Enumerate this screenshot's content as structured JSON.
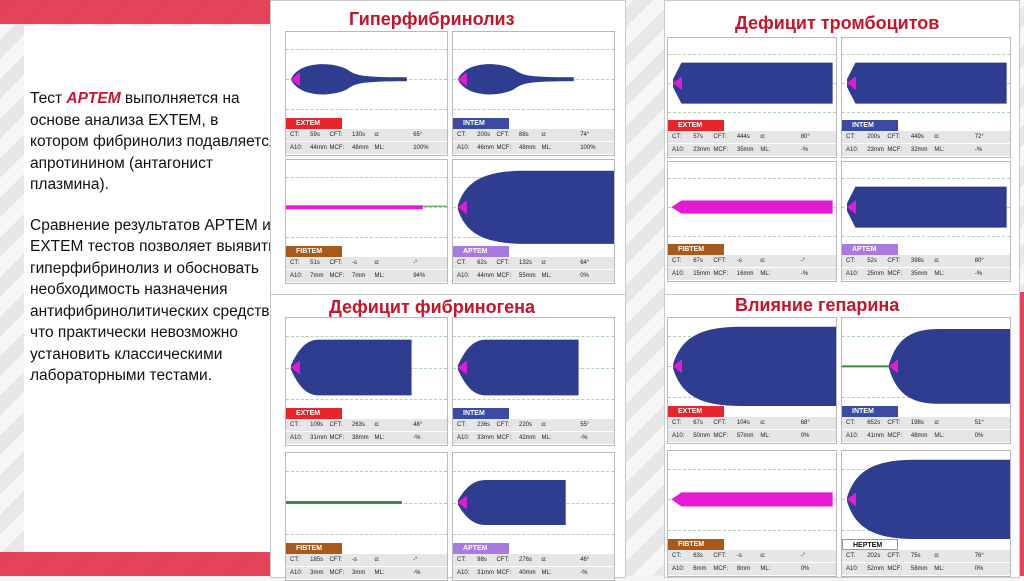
{
  "description": {
    "p1_pre": "Тест ",
    "p1_hl": "APTEM",
    "p1_post": " выполняется на основе анализа EXTEM, в котором фибринолиз подавляется апротинином (антагонист плазмина).",
    "p2": "Сравнение результатов APTEM и EXTEM тестов позволяет выявить гиперфибринолиз и обосновать необходимость назначения антифибринолитических средств, что практически невозможно установить классическими лабораторными тестами."
  },
  "colors": {
    "trace": "#2e3d8f",
    "start": "#e61ad2",
    "line": "#3e8a3e",
    "title": "#c5152b",
    "EXTEM": "#e8252d",
    "INTEM": "#3b4aa3",
    "FIBTEM": "#a85a1c",
    "APTEM": "#a97be0",
    "HEPTEM": "#ffffff"
  },
  "sections": [
    {
      "id": "hyper",
      "title": "Гиперфибринолиз",
      "panels": [
        {
          "test": "EXTEM",
          "shape": "lysis",
          "a10": 0.42,
          "lysis": 0.55,
          "row1": [
            "CT:",
            "59s",
            "CFT:",
            "130s",
            "α:",
            "65°"
          ],
          "row2": [
            "A10:",
            "44mm",
            "MCF:",
            "48mm",
            "ML:",
            "100%"
          ]
        },
        {
          "test": "INTEM",
          "shape": "lysis",
          "a10": 0.42,
          "lysis": 0.55,
          "row1": [
            "CT:",
            "200s",
            "CFT:",
            "88s",
            "α:",
            "74°"
          ],
          "row2": [
            "A10:",
            "46mm",
            "MCF:",
            "48mm",
            "ML:",
            "100%"
          ]
        },
        {
          "test": "FIBTEM",
          "shape": "thin",
          "row1": [
            "CT:",
            "51s",
            "CFT:",
            "-s",
            "α:",
            "-°"
          ],
          "row2": [
            "A10:",
            "7mm",
            "MCF:",
            "7mm",
            "ML:",
            "94%"
          ]
        },
        {
          "test": "APTEM",
          "shape": "normal",
          "a10": 0.85,
          "row1": [
            "CT:",
            "62s",
            "CFT:",
            "132s",
            "α:",
            "64°"
          ],
          "row2": [
            "A10:",
            "44mm",
            "MCF:",
            "55mm",
            "ML:",
            "0%"
          ]
        }
      ]
    },
    {
      "id": "plt",
      "title": "Дефицит тромбоцитов",
      "panels": [
        {
          "test": "EXTEM",
          "shape": "flat",
          "a10": 0.5,
          "row1": [
            "CT:",
            "57s",
            "CFT:",
            "444s",
            "α:",
            "80°"
          ],
          "row2": [
            "A10:",
            "23mm",
            "MCF:",
            "35mm",
            "ML:",
            "-%"
          ]
        },
        {
          "test": "INTEM",
          "shape": "flat",
          "a10": 0.5,
          "row1": [
            "CT:",
            "200s",
            "CFT:",
            "449s",
            "α:",
            "72°"
          ],
          "row2": [
            "A10:",
            "23mm",
            "MCF:",
            "32mm",
            "ML:",
            "-%"
          ]
        },
        {
          "test": "FIBTEM",
          "shape": "pinkbar",
          "row1": [
            "CT:",
            "67s",
            "CFT:",
            "-s",
            "α:",
            "-°"
          ],
          "row2": [
            "A10:",
            "15mm",
            "MCF:",
            "16mm",
            "ML:",
            "-%"
          ]
        },
        {
          "test": "APTEM",
          "shape": "flat",
          "a10": 0.5,
          "row1": [
            "CT:",
            "52s",
            "CFT:",
            "398s",
            "α:",
            "80°"
          ],
          "row2": [
            "A10:",
            "25mm",
            "MCF:",
            "35mm",
            "ML:",
            "-%"
          ]
        }
      ]
    },
    {
      "id": "fib",
      "title": "Дефицит фибриногена",
      "panels": [
        {
          "test": "EXTEM",
          "shape": "block",
          "a10": 0.62,
          "row1": [
            "CT:",
            "109s",
            "CFT:",
            "263s",
            "α:",
            "48°"
          ],
          "row2": [
            "A10:",
            "31mm",
            "MCF:",
            "38mm",
            "ML:",
            "-%"
          ]
        },
        {
          "test": "INTEM",
          "shape": "block",
          "a10": 0.62,
          "row1": [
            "CT:",
            "236s",
            "CFT:",
            "220s",
            "α:",
            "55°"
          ],
          "row2": [
            "A10:",
            "33mm",
            "MCF:",
            "42mm",
            "ML:",
            "-%"
          ]
        },
        {
          "test": "FIBTEM",
          "shape": "line",
          "row1": [
            "CT:",
            "185s",
            "CFT:",
            "-s",
            "α:",
            "-°"
          ],
          "row2": [
            "A10:",
            "3mm",
            "MCF:",
            "3mm",
            "ML:",
            "-%"
          ]
        },
        {
          "test": "APTEM",
          "shape": "block",
          "a10": 0.5,
          "row1": [
            "CT:",
            "98s",
            "CFT:",
            "276s",
            "α:",
            "46°"
          ],
          "row2": [
            "A10:",
            "31mm",
            "MCF:",
            "40mm",
            "ML:",
            "-%"
          ]
        }
      ]
    },
    {
      "id": "hep",
      "title": "Влияние гепарина",
      "panels": [
        {
          "test": "EXTEM",
          "shape": "normal",
          "a10": 0.9,
          "row1": [
            "CT:",
            "67s",
            "CFT:",
            "104s",
            "α:",
            "68°"
          ],
          "row2": [
            "A10:",
            "50mm",
            "MCF:",
            "57mm",
            "ML:",
            "0%"
          ]
        },
        {
          "test": "INTEM",
          "shape": "delayed",
          "a10": 0.85,
          "row1": [
            "CT:",
            "652s",
            "CFT:",
            "198s",
            "α:",
            "51°"
          ],
          "row2": [
            "A10:",
            "41mm",
            "MCF:",
            "48mm",
            "ML:",
            "0%"
          ]
        },
        {
          "test": "FIBTEM",
          "shape": "pinkbar",
          "row1": [
            "CT:",
            "63s",
            "CFT:",
            "-s",
            "α:",
            "-°"
          ],
          "row2": [
            "A10:",
            "6mm",
            "MCF:",
            "8mm",
            "ML:",
            "0%"
          ]
        },
        {
          "test": "HEPTEM",
          "shape": "normal",
          "a10": 0.9,
          "row1": [
            "CT:",
            "202s",
            "CFT:",
            "75s",
            "α:",
            "76°"
          ],
          "row2": [
            "A10:",
            "52mm",
            "MCF:",
            "58mm",
            "ML:",
            "0%"
          ]
        }
      ]
    }
  ]
}
